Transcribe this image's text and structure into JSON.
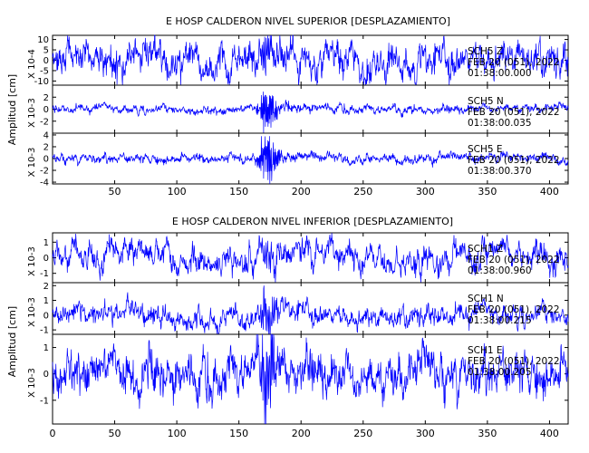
{
  "chart_data": [
    {
      "type": "line",
      "title": "E HOSP CALDERON NIVEL SUPERIOR [DESPLAZAMIENTO]",
      "ylabel": "Amplitud [cm]",
      "xlim": [
        0,
        415
      ],
      "xticks": [
        50,
        100,
        150,
        200,
        250,
        300,
        350,
        400
      ],
      "line_color": "#0000ff",
      "panels": [
        {
          "station": "SCH5",
          "component": "Z",
          "date": "FEB 20 (051), 2022",
          "time": "01:38:00.000",
          "scale": "X 10-4",
          "ylim": [
            -12,
            12
          ],
          "yticks": [
            10,
            5,
            0,
            -5,
            -10
          ],
          "noise": 4.0,
          "burst": 6.0,
          "freq": 0.65
        },
        {
          "station": "SCH5",
          "component": "N",
          "date": "FEB 20 (051), 2022",
          "time": "01:38:00.035",
          "scale": "X 10-3",
          "ylim": [
            -4,
            4
          ],
          "yticks": [
            2,
            0,
            -2
          ],
          "noise": 0.35,
          "burst": 3.4,
          "freq": 1.4
        },
        {
          "station": "SCH5",
          "component": "E",
          "date": "FEB 20 (051), 2022",
          "time": "01:38:00.370",
          "scale": "X 10-3",
          "ylim": [
            -4.3,
            4.3
          ],
          "yticks": [
            4,
            2,
            0,
            -2,
            -4
          ],
          "noise": 0.4,
          "burst": 3.6,
          "freq": 1.4
        }
      ]
    },
    {
      "type": "line",
      "title": "E HOSP CALDERON NIVEL INFERIOR [DESPLAZAMIENTO]",
      "ylabel": "Amplitud [cm]",
      "xlim": [
        0,
        415
      ],
      "xticks": [
        0,
        50,
        100,
        150,
        200,
        250,
        300,
        350,
        400
      ],
      "line_color": "#0000ff",
      "panels": [
        {
          "station": "SCH1",
          "component": "Z",
          "date": "FEB 20 (051), 2022",
          "time": "01:38:00.960",
          "scale": "X 10-3",
          "ylim": [
            -1.6,
            1.6
          ],
          "yticks": [
            1,
            0,
            -1
          ],
          "noise": 0.42,
          "burst": 0.5,
          "freq": 0.5
        },
        {
          "station": "SCH1",
          "component": "N",
          "date": "FEB 20 (051), 2022",
          "time": "01:38:00.215",
          "scale": "X 10-3",
          "ylim": [
            -1.3,
            2.2
          ],
          "yticks": [
            2,
            1,
            0,
            -1
          ],
          "noise": 0.35,
          "burst": 1.3,
          "freq": 0.6
        },
        {
          "station": "SCH1",
          "component": "E",
          "date": "FEB 20 (051), 2022",
          "time": "01:38:00.205",
          "scale": "X 10-3",
          "ylim": [
            -1.9,
            1.5
          ],
          "yticks": [
            1,
            0,
            -1
          ],
          "noise": 0.4,
          "burst": 1.2,
          "freq": 0.6
        }
      ]
    }
  ]
}
